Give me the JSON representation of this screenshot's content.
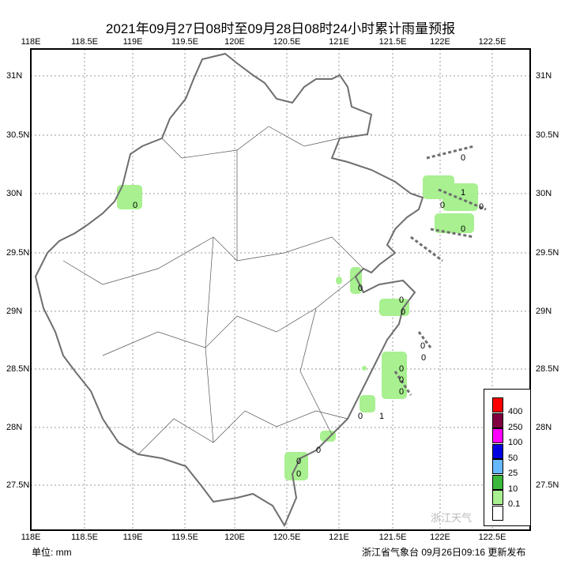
{
  "title": "2021年09月27日08时至09月28日08时24小时累计雨量预报",
  "lon_ticks": [
    "118E",
    "118.5E",
    "119E",
    "119.5E",
    "120E",
    "120.5E",
    "121E",
    "121.5E",
    "122E",
    "122.5E"
  ],
  "lat_ticks": [
    "31N",
    "30.5N",
    "30N",
    "29.5N",
    "29N",
    "28.5N",
    "28N",
    "27.5N"
  ],
  "unit_label": "单位: mm",
  "issuer": "浙江省气象台 09月26日09:16 更新发布",
  "watermark": "浙江天气",
  "legend": [
    {
      "label": "400",
      "color": "#ff0000"
    },
    {
      "label": "250",
      "color": "#800040"
    },
    {
      "label": "100",
      "color": "#ff00ff"
    },
    {
      "label": "50",
      "color": "#0000e0"
    },
    {
      "label": "25",
      "color": "#66b8ff"
    },
    {
      "label": "10",
      "color": "#3cb83c"
    },
    {
      "label": "0.1",
      "color": "#a8f090"
    },
    {
      "label": "",
      "color": "#ffffff"
    }
  ],
  "rain_labels": [
    "0",
    "0",
    "0",
    "0",
    "0",
    "0",
    "0",
    "0",
    "0",
    "0",
    "1",
    "0",
    "0",
    "0",
    "0",
    "0",
    "1",
    "0",
    "0"
  ]
}
